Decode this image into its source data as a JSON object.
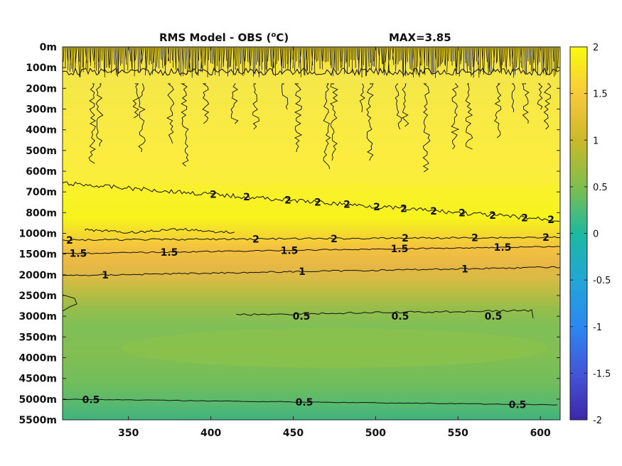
{
  "chart_data": {
    "type": "heatmap",
    "title_main": "RMS Model - OBS (",
    "title_unit_sup": "o",
    "title_unit_tail": "C)",
    "title_max": "MAX=3.85",
    "x_ticks": [
      350,
      400,
      450,
      500,
      550,
      600
    ],
    "xlim": [
      310,
      612
    ],
    "y_ticks": [
      "0m",
      "100m",
      "200m",
      "300m",
      "400m",
      "500m",
      "600m",
      "700m",
      "800m",
      "1000m",
      "1500m",
      "2000m",
      "2500m",
      "3000m",
      "3500m",
      "4000m",
      "4500m",
      "5000m",
      "5500m"
    ],
    "colorbar": {
      "min": -2,
      "max": 2,
      "ticks": [
        "2",
        "1.5",
        "1",
        "0.5",
        "0",
        "-0.5",
        "-1",
        "-1.5",
        "-2"
      ]
    },
    "contours": [
      {
        "level": "2",
        "label_x": [
          300,
          347,
          405,
          447,
          488,
          530,
          568,
          610,
          650,
          693,
          738,
          775
        ]
      },
      {
        "level": "2",
        "label_x": [
          98,
          360,
          470,
          570,
          668,
          768
        ]
      },
      {
        "level": "1.5",
        "label_x": [
          110,
          238,
          407,
          562,
          707
        ]
      },
      {
        "level": "1",
        "label_x": [
          148,
          425,
          654
        ]
      },
      {
        "level": "0.5",
        "label_x": [
          424,
          563,
          694
        ]
      },
      {
        "level": "0.5",
        "label_x": [
          128,
          428,
          728
        ]
      }
    ]
  }
}
